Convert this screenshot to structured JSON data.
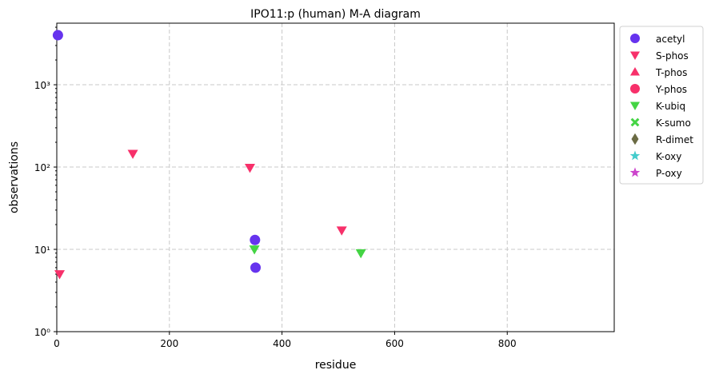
{
  "chart_data": {
    "type": "scatter",
    "title": "IPO11:p (human) M-A diagram",
    "xlabel": "residue",
    "ylabel": "observations",
    "xlim": [
      0,
      990
    ],
    "ylim": [
      1,
      5600
    ],
    "yscale": "log",
    "grid": true,
    "legend_position": "outside-right",
    "xticks": [
      0,
      200,
      400,
      600,
      800
    ],
    "xtick_labels": [
      "0",
      "200",
      "400",
      "600",
      "800"
    ],
    "yticks": [
      1,
      10,
      100,
      1000
    ],
    "ytick_labels": [
      "10⁰",
      "10¹",
      "10²",
      "10³"
    ],
    "series": [
      {
        "name": "acetyl",
        "marker": "circle",
        "color": "#6633ee",
        "points": [
          {
            "x": 2,
            "y": 4000
          },
          {
            "x": 352,
            "y": 13
          },
          {
            "x": 353,
            "y": 6
          }
        ]
      },
      {
        "name": "S-phos",
        "marker": "triangle-down",
        "color": "#f7306a",
        "points": [
          {
            "x": 5,
            "y": 5
          },
          {
            "x": 135,
            "y": 145
          },
          {
            "x": 343,
            "y": 98
          },
          {
            "x": 506,
            "y": 17
          }
        ]
      },
      {
        "name": "T-phos",
        "marker": "triangle-up",
        "color": "#f7306a",
        "points": []
      },
      {
        "name": "Y-phos",
        "marker": "circle",
        "color": "#f7306a",
        "points": []
      },
      {
        "name": "K-ubiq",
        "marker": "triangle-down",
        "color": "#44d444",
        "points": [
          {
            "x": 351,
            "y": 10
          },
          {
            "x": 540,
            "y": 9
          }
        ]
      },
      {
        "name": "K-sumo",
        "marker": "x",
        "color": "#44d444",
        "points": []
      },
      {
        "name": "R-dimet",
        "marker": "diamond",
        "color": "#6b6b44",
        "points": []
      },
      {
        "name": "K-oxy",
        "marker": "star",
        "color": "#44cccc",
        "points": []
      },
      {
        "name": "P-oxy",
        "marker": "star",
        "color": "#cc44cc",
        "points": []
      }
    ]
  }
}
